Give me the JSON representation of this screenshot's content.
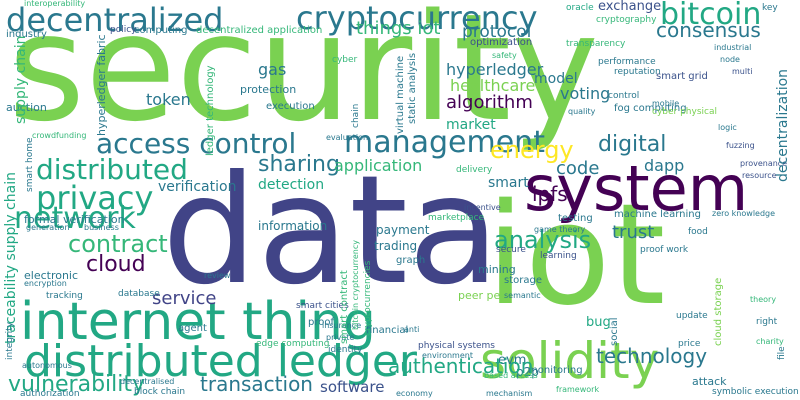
{
  "words": {
    "security": "security",
    "data": "data",
    "iot": "iot",
    "system": "system",
    "internet_thing": "internet thing",
    "distributed_ledger": "distributed ledger",
    "solidity": "solidity",
    "decentralized": "decentralized",
    "cryptocurrency": "cryptocurrency",
    "bitcoin": "bitcoin",
    "consensus": "consensus",
    "management": "management",
    "privacy": "privacy",
    "network": "network",
    "access_control": "access control",
    "distributed": "distributed",
    "sharing": "sharing",
    "energy": "energy",
    "digital": "digital",
    "contract": "contract",
    "cloud": "cloud",
    "analysis": "analysis",
    "ipfs": "ipfs",
    "trust": "trust",
    "token": "token",
    "gas": "gas",
    "hyperledger": "hyperledger",
    "healthcare": "healthcare",
    "algorithm": "algorithm",
    "model": "model",
    "voting": "voting",
    "things_iot": "things iot",
    "protocol": "protocol",
    "market": "market",
    "detection": "detection",
    "application": "application",
    "verification": "verification",
    "dapp": "dapp",
    "code": "code",
    "smart": "smart",
    "service": "service",
    "transaction": "transaction",
    "vulnerability": "vulnerability",
    "technology": "technology",
    "authentication": "authentication",
    "software": "software",
    "exchange": "exchange",
    "payment": "payment",
    "trading": "trading",
    "information": "information",
    "peer_peer": "peer peer",
    "p2p": "p2p",
    "evm": "evm",
    "mining": "mining",
    "storage": "storage",
    "decentralization": "decentralization",
    "traceability_supply_chain": "traceability supply chain",
    "supply_chain": "supply chain",
    "auction": "auction",
    "formal_verification": "formal verification",
    "protection": "protection",
    "execution": "execution",
    "smart_grid": "smart grid",
    "fog_computing": "fog computing",
    "performance": "performance",
    "reputation": "reputation",
    "optimization": "optimization",
    "machine_learning": "machine learning",
    "testing": "testing",
    "marketplace": "marketplace",
    "proof_work": "proof work",
    "electronic": "electronic",
    "tracking": "tracking",
    "database": "database",
    "identity": "identity",
    "insurance": "insurance",
    "smart_cities": "smart cities",
    "attack": "attack",
    "symbolic_execution": "symbolic execution",
    "block_chain": "block chain",
    "authorization": "authorization",
    "economy": "economy",
    "monitoring": "monitoring",
    "bug": "bug",
    "social": "social",
    "fuzzing": "fuzzing",
    "provenance": "provenance",
    "resource": "resource",
    "food": "food",
    "zero_knowledge": "zero knowledge",
    "oracle": "oracle",
    "cryptography": "cryptography",
    "industrial": "industrial",
    "node": "node",
    "multi": "multi",
    "transparency": "transparency",
    "secure": "secure",
    "learning": "learning",
    "proof": "proof",
    "agent": "agent",
    "graph": "graph",
    "fabric": "fabric",
    "industry": "industry",
    "interoperability": "interoperability",
    "computing": "computing",
    "decentralized_application": "decentralized application",
    "policy": "policy",
    "cyber": "cyber",
    "virtual_machine": "virtual machine",
    "static_analysis": "static analysis",
    "mobile": "mobile",
    "cyber_physical": "cyber physical",
    "logic": "logic",
    "control": "control",
    "quality": "quality",
    "ledger_technology": "ledger technology",
    "hyperledger_fabric": "hyperledger fabric",
    "crowdfunding": "crowdfunding",
    "smart_home": "smart home",
    "generation": "generation",
    "business": "business",
    "encryption": "encryption",
    "review": "review",
    "edge_computing": "edge computing",
    "physical_systems": "physical systems",
    "cloud_storage": "cloud storage",
    "price": "price",
    "private": "private",
    "financial": "financial",
    "autonomous": "autonomous",
    "integrity": "integrity",
    "anti": "anti",
    "file": "file",
    "right": "right",
    "charity": "charity",
    "theory": "theory",
    "update": "update",
    "game_theory": "game theory",
    "mechanism": "mechanism",
    "decentralised": "decentralised",
    "chain": "chain",
    "semantic": "semantic",
    "bitcoin_cryptocurrency": "bitcoin cryptocurrency",
    "delivery": "delivery",
    "based_access": "based access",
    "incentive": "incentive",
    "safety": "safety",
    "evaluation": "evaluation",
    "cryptocurrencies": "cryptocurrencies",
    "smart_contract": "smart contract",
    "key": "key",
    "environment": "environment",
    "framework": "framework"
  }
}
